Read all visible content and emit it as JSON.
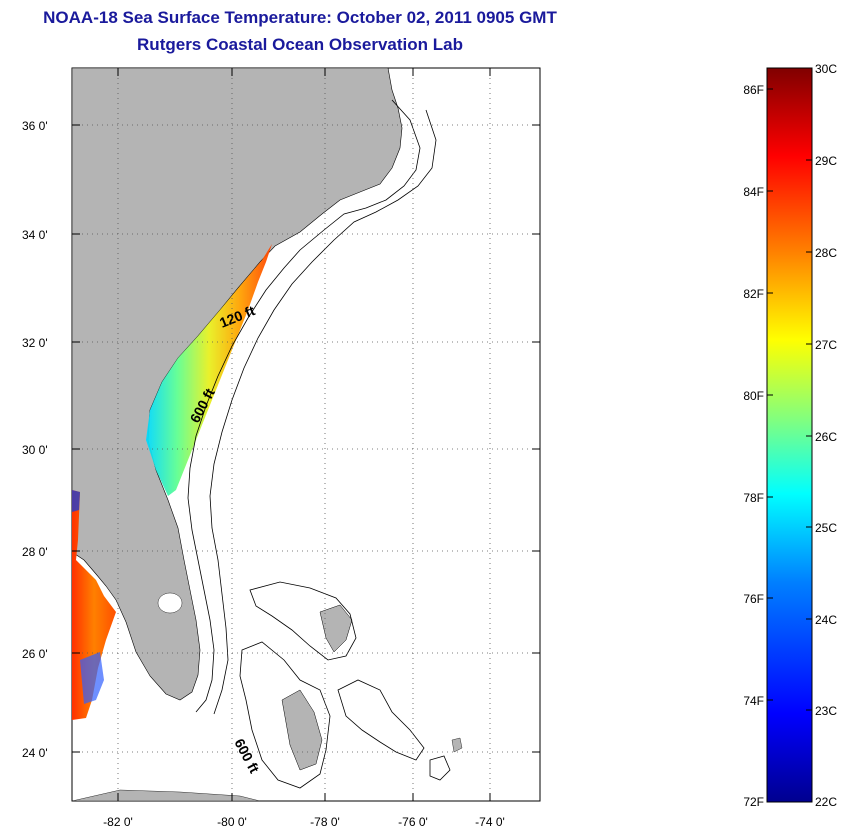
{
  "header": {
    "title": "NOAA-18 Sea Surface Temperature:  October 02, 2011 0905 GMT",
    "subtitle": "Rutgers Coastal Ocean Observation Lab"
  },
  "map": {
    "lon_range": [
      -83,
      -73
    ],
    "lat_range": [
      23,
      37
    ],
    "lat_ticks": [
      "36 0'",
      "34 0'",
      "32 0'",
      "30 0'",
      "28 0'",
      "26 0'",
      "24 0'"
    ],
    "lon_ticks": [
      "-82 0'",
      "-80 0'",
      "-78 0'",
      "-76 0'",
      "-74 0'"
    ],
    "land_color": "#b4b4b4",
    "depth_labels": [
      "120 ft",
      "600 ft",
      "600 ft"
    ]
  },
  "colorbar": {
    "celsius_labels": [
      "30C",
      "29C",
      "28C",
      "27C",
      "26C",
      "25C",
      "24C",
      "23C",
      "22C"
    ],
    "fahrenheit_labels": [
      "86F",
      "84F",
      "82F",
      "80F",
      "78F",
      "76F",
      "74F",
      "72F"
    ],
    "range_c": [
      22,
      30
    ],
    "colors": [
      "#00008f",
      "#0000ff",
      "#0080ff",
      "#00ffff",
      "#80ff80",
      "#ffff00",
      "#ff8000",
      "#ff0000",
      "#800000"
    ]
  }
}
